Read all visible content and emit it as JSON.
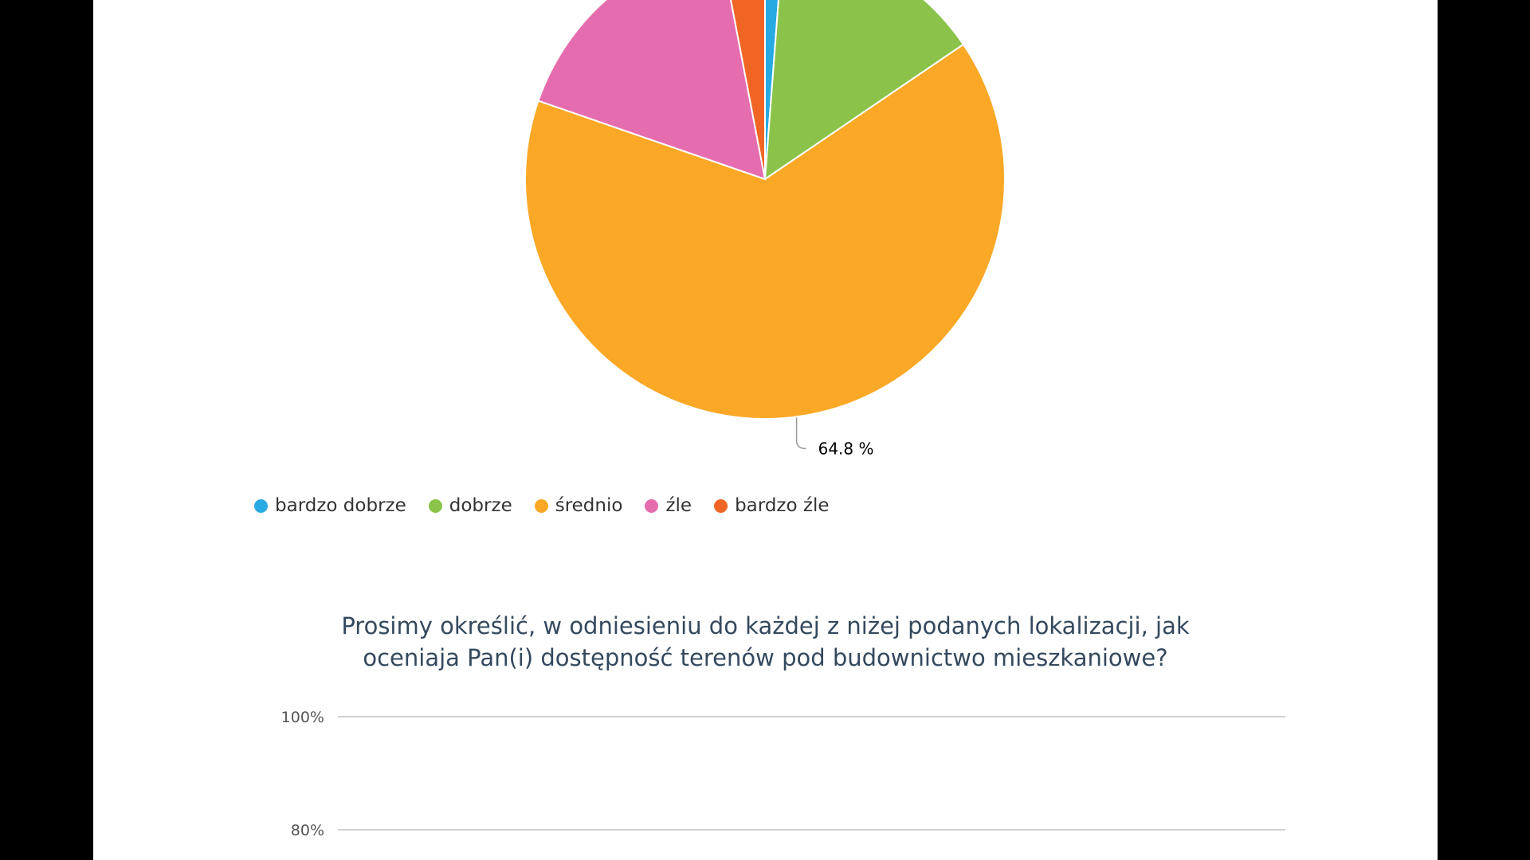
{
  "chart_data": [
    {
      "type": "pie",
      "slices": [
        {
          "label": "bardzo dobrze",
          "value": 1.2,
          "color": "#27aae1"
        },
        {
          "label": "dobrze",
          "value": 14.3,
          "color": "#8bc34a"
        },
        {
          "label": "średnio",
          "value": 64.8,
          "color": "#faa825"
        },
        {
          "label": "źle",
          "value": 16.7,
          "color": "#e56daf"
        },
        {
          "label": "bardzo źle",
          "value": 3.0,
          "color": "#f06524"
        }
      ],
      "visible_label": "64.8 %",
      "legend": [
        "bardzo dobrze",
        "dobrze",
        "średnio",
        "źle",
        "bardzo źle"
      ],
      "legend_position": "bottom-left"
    },
    {
      "type": "bar",
      "title_line1": "Prosimy określić, w odniesieniu do każdej z niżej podanych lokalizacji, jak",
      "title_line2": "oceniaja Pan(i) dostępność terenów pod budownictwo mieszkaniowe?",
      "y_ticks": [
        "100%",
        "80%"
      ],
      "ylim": [
        0,
        100
      ],
      "grid": true
    }
  ]
}
